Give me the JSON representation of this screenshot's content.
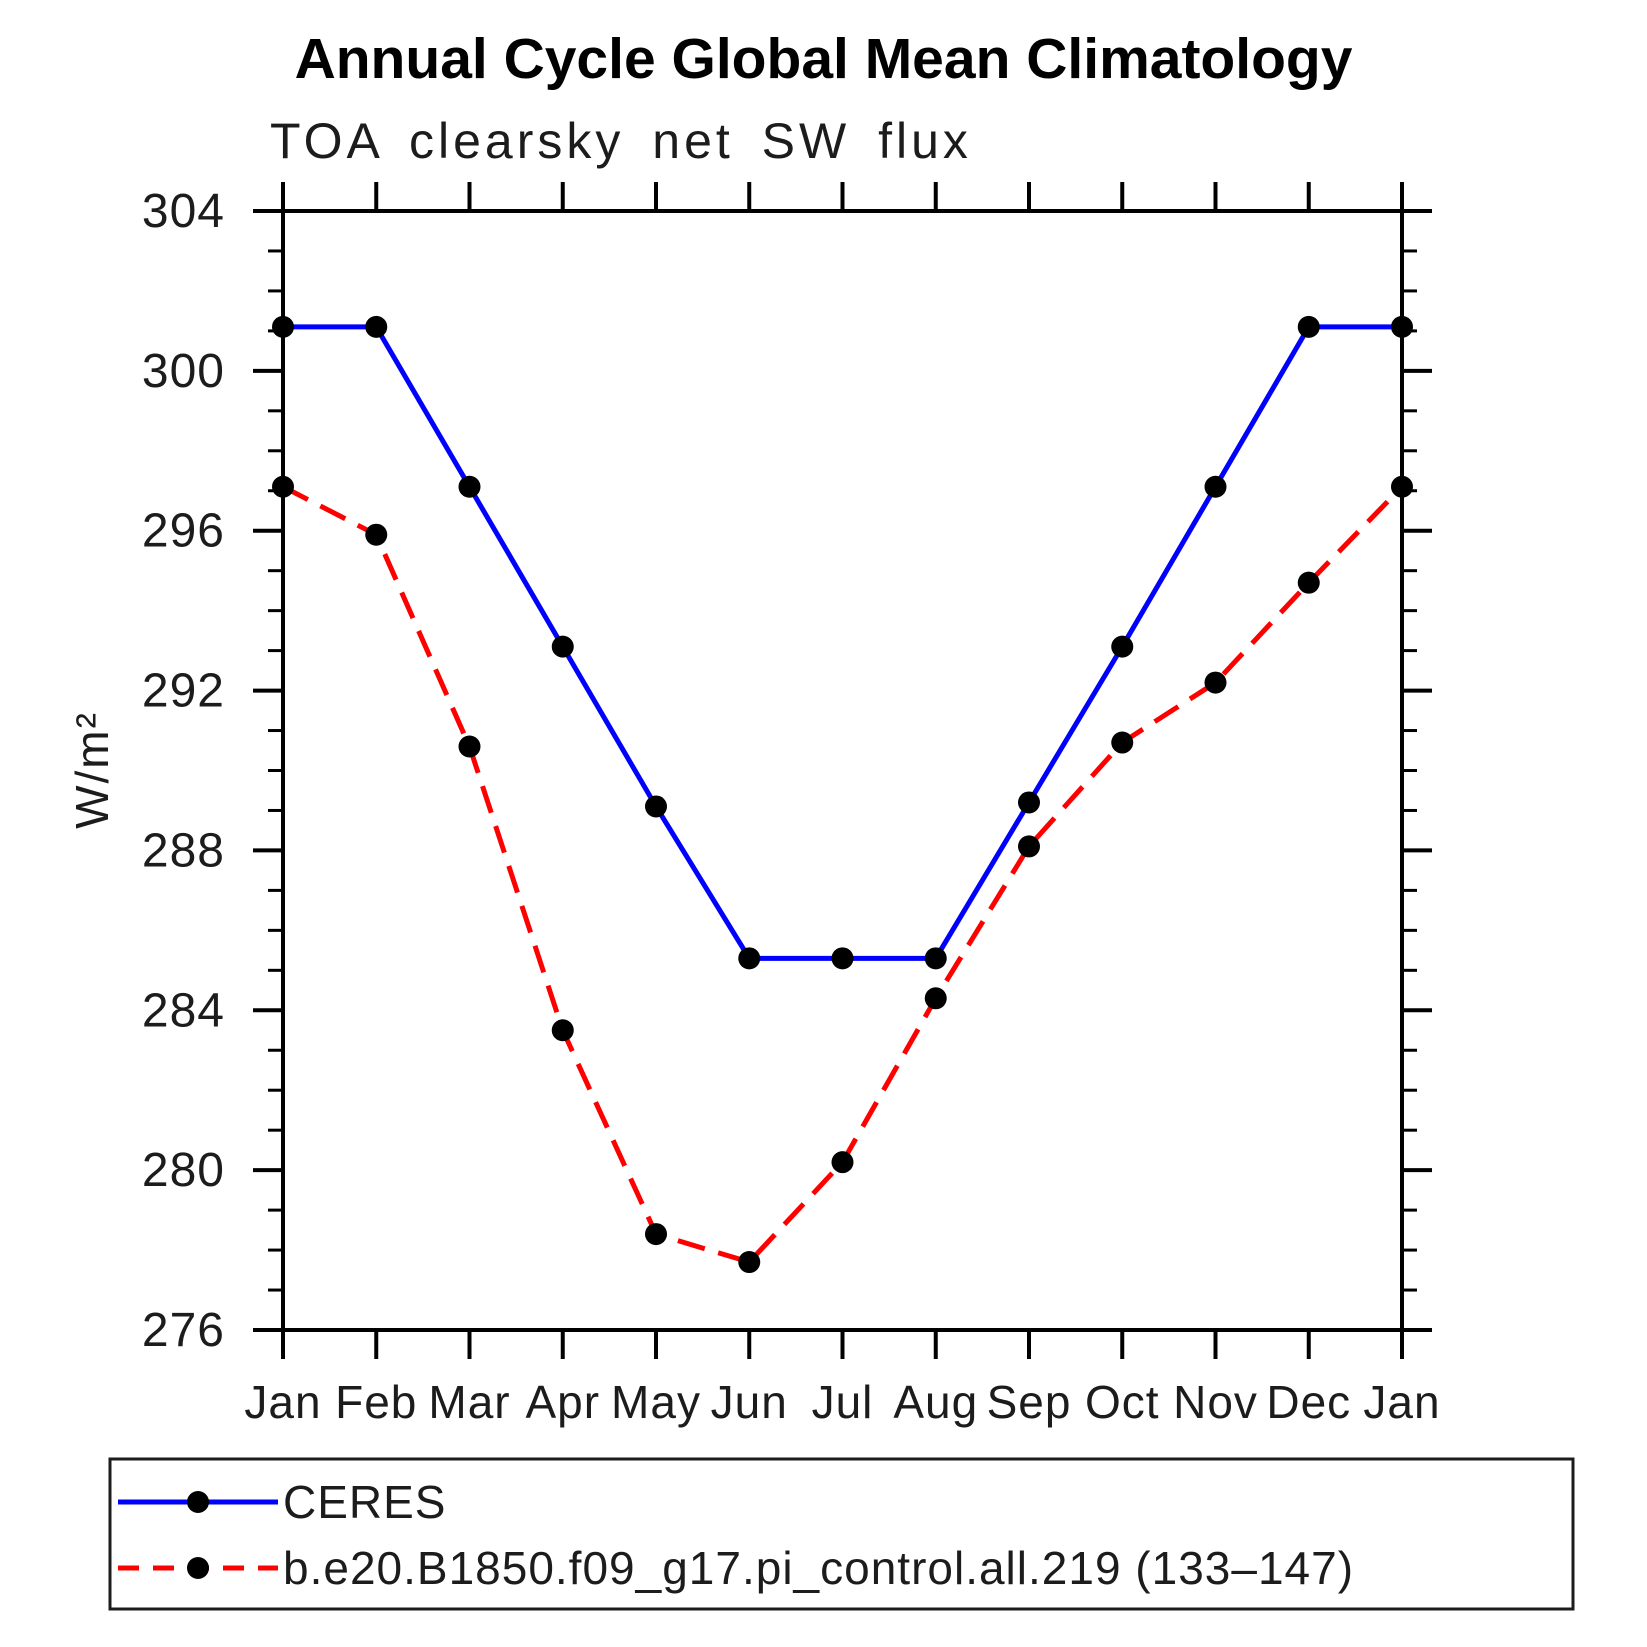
{
  "page": {
    "background": "#ffffff",
    "text_color": "#000000"
  },
  "chart_data": {
    "type": "line",
    "title": "Annual Cycle Global Mean Climatology",
    "subtitle": "TOA clearsky net SW flux",
    "ylabel": "W/m²",
    "xlabel": "",
    "categories": [
      "Jan",
      "Feb",
      "Mar",
      "Apr",
      "May",
      "Jun",
      "Jul",
      "Aug",
      "Sep",
      "Oct",
      "Nov",
      "Dec",
      "Jan"
    ],
    "ylim": [
      276,
      304
    ],
    "ytick_major": [
      276,
      280,
      284,
      288,
      292,
      296,
      300,
      304
    ],
    "ytick_minor_step": 1,
    "grid": false,
    "legend_position": "bottom-left-box",
    "axis_color": "#000000",
    "marker_color": "#000000",
    "series": [
      {
        "name": "CERES",
        "color": "#0000ff",
        "line_style": "solid",
        "marker": "filled-circle",
        "values": [
          301.1,
          301.1,
          297.1,
          293.1,
          289.1,
          285.3,
          285.3,
          285.3,
          289.2,
          293.1,
          297.1,
          301.1,
          301.1
        ]
      },
      {
        "name": "b.e20.B1850.f09_g17.pi_control.all.219 (133–147)",
        "color": "#ff0000",
        "line_style": "dashed",
        "marker": "filled-circle",
        "values": [
          297.1,
          295.9,
          290.6,
          283.5,
          278.4,
          277.7,
          280.2,
          284.3,
          288.1,
          290.7,
          292.2,
          294.7,
          297.1
        ]
      }
    ]
  }
}
